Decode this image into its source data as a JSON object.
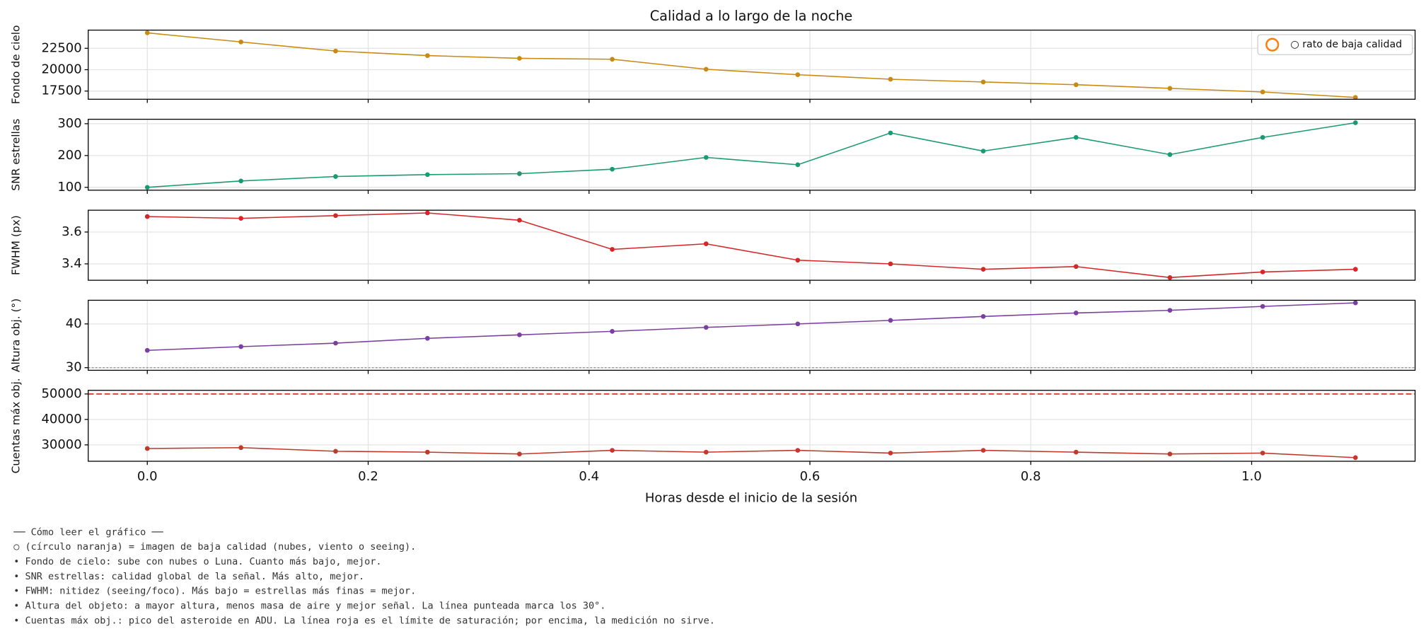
{
  "chart_data": {
    "type": "line",
    "title": "Calidad a lo largo de la noche",
    "xlabel": "Horas desde el inicio de la sesión",
    "x": [
      0,
      0.0848,
      0.1705,
      0.2537,
      0.337,
      0.421,
      0.506,
      0.589,
      0.673,
      0.757,
      0.841,
      0.926,
      1.01,
      1.094
    ],
    "xlim": [
      -0.0535,
      1.148
    ],
    "xticks": [
      {
        "value": 0,
        "label": "0.0"
      },
      {
        "value": 0.2,
        "label": "0.2"
      },
      {
        "value": 0.4,
        "label": "0.4"
      },
      {
        "value": 0.6,
        "label": "0.6"
      },
      {
        "value": 0.8,
        "label": "0.8"
      },
      {
        "value": 1,
        "label": "1.0"
      }
    ],
    "grid": true,
    "legend": {
      "label": "○ rato de baja calidad",
      "color": "#ff7f0e",
      "position": "upper right"
    },
    "panels": [
      {
        "ylabel": "Fondo de cielo",
        "color": "#c98a13",
        "ylim": [
          16543,
          24628
        ],
        "yticks": [
          17500,
          20000,
          22500
        ],
        "values": [
          24309,
          23245,
          22181,
          21649,
          21330,
          21223,
          20053,
          19414,
          18882,
          18563,
          18244,
          17818,
          17393,
          16755
        ]
      },
      {
        "ylabel": "SNR estrellas",
        "color": "#1a9a72",
        "ylim": [
          91,
          314
        ],
        "yticks": [
          100,
          200,
          300
        ],
        "values": [
          100,
          120,
          134,
          140,
          143,
          157,
          194,
          171,
          271,
          214,
          257,
          203,
          257,
          303
        ]
      },
      {
        "ylabel": "FWHM (px)",
        "color": "#d62728",
        "ylim": [
          3.297,
          3.737
        ],
        "yticks": [
          3.4,
          3.6
        ],
        "values": [
          3.697,
          3.686,
          3.703,
          3.72,
          3.674,
          3.491,
          3.526,
          3.423,
          3.4,
          3.366,
          3.383,
          3.314,
          3.349,
          3.366
        ]
      },
      {
        "ylabel": "Altura obj. (°)",
        "color": "#7b3fa0",
        "ylim": [
          29.4,
          45.4
        ],
        "yticks": [
          30,
          40
        ],
        "ref_line": {
          "value": 30,
          "color": "#888888",
          "style": "dotted"
        },
        "values": [
          33.96,
          34.8,
          35.6,
          36.7,
          37.5,
          38.3,
          39.2,
          40,
          40.8,
          41.7,
          42.5,
          43.1,
          44,
          44.8
        ]
      },
      {
        "ylabel": "Cuentas máx obj.",
        "color": "#c0392b",
        "ylim": [
          23570,
          51430
        ],
        "yticks": [
          30000,
          40000,
          50000
        ],
        "ref_line": {
          "value": 50000,
          "color": "#e0413c",
          "style": "dashed"
        },
        "values": [
          28571,
          28929,
          27500,
          27143,
          26429,
          27857,
          27143,
          27857,
          26786,
          27857,
          27143,
          26429,
          26786,
          25000
        ]
      }
    ],
    "notes": [
      "── Cómo leer el gráfico ──",
      "○ (círculo naranja) = imagen de baja calidad (nubes, viento o seeing).",
      "• Fondo de cielo: sube con nubes o Luna. Cuanto más bajo, mejor.",
      "• SNR estrellas: calidad global de la señal. Más alto, mejor.",
      "• FWHM: nitidez (seeing/foco). Más bajo = estrellas más finas = mejor.",
      "• Altura del objeto: a mayor altura, menos masa de aire y mejor señal. La línea punteada marca los 30°.",
      "• Cuentas máx obj.: pico del asteroide en ADU. La línea roja es el límite de saturación; por encima, la medición no sirve."
    ]
  }
}
